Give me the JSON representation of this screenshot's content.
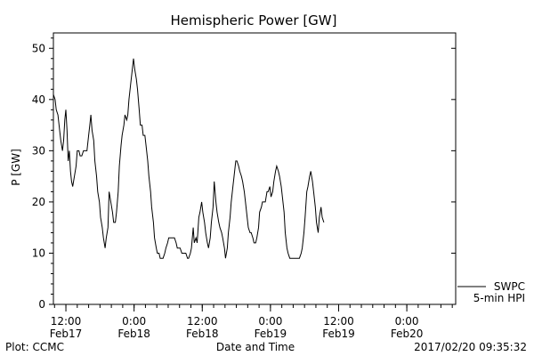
{
  "chart_data": {
    "type": "line",
    "title": "Hemispheric Power [GW]",
    "xlabel": "Date and Time",
    "ylabel": "P [GW]",
    "ylim": [
      0,
      53
    ],
    "yticks": [
      0,
      10,
      20,
      30,
      40,
      50
    ],
    "x_unit": "hours since 2017-02-17 00:00 UT",
    "xlim": [
      9.8,
      80.6
    ],
    "xticks": [
      {
        "x": 12,
        "line1": "12:00",
        "line2": "Feb17"
      },
      {
        "x": 24,
        "line1": "0:00",
        "line2": "Feb18"
      },
      {
        "x": 36,
        "line1": "12:00",
        "line2": "Feb18"
      },
      {
        "x": 48,
        "line1": "0:00",
        "line2": "Feb19"
      },
      {
        "x": 60,
        "line1": "12:00",
        "line2": "Feb19"
      },
      {
        "x": 72,
        "line1": "0:00",
        "line2": "Feb20"
      }
    ],
    "grid": false,
    "legend_placement": "bottom-right",
    "series": [
      {
        "name": "SWPC",
        "color": "#000000",
        "points": [
          [
            9.8,
            41
          ],
          [
            10.1,
            40
          ],
          [
            10.3,
            38
          ],
          [
            10.6,
            37
          ],
          [
            10.9,
            34
          ],
          [
            11.1,
            32
          ],
          [
            11.4,
            30
          ],
          [
            11.6,
            32
          ],
          [
            11.8,
            36
          ],
          [
            12.0,
            38
          ],
          [
            12.2,
            34
          ],
          [
            12.4,
            28
          ],
          [
            12.6,
            30
          ],
          [
            12.8,
            26
          ],
          [
            13.0,
            24
          ],
          [
            13.2,
            23
          ],
          [
            13.5,
            25
          ],
          [
            13.8,
            27
          ],
          [
            14.0,
            30
          ],
          [
            14.3,
            30
          ],
          [
            14.5,
            29
          ],
          [
            14.8,
            29
          ],
          [
            15.1,
            30
          ],
          [
            15.4,
            30
          ],
          [
            15.7,
            30
          ],
          [
            16.0,
            33
          ],
          [
            16.2,
            35
          ],
          [
            16.4,
            37
          ],
          [
            16.6,
            34
          ],
          [
            16.9,
            32
          ],
          [
            17.1,
            28
          ],
          [
            17.4,
            25
          ],
          [
            17.6,
            22
          ],
          [
            17.9,
            20
          ],
          [
            18.1,
            17
          ],
          [
            18.4,
            15
          ],
          [
            18.6,
            13
          ],
          [
            18.9,
            11
          ],
          [
            19.1,
            13
          ],
          [
            19.4,
            15
          ],
          [
            19.6,
            22
          ],
          [
            19.9,
            20
          ],
          [
            20.2,
            18
          ],
          [
            20.4,
            16
          ],
          [
            20.7,
            16
          ],
          [
            20.9,
            18
          ],
          [
            21.2,
            22
          ],
          [
            21.4,
            27
          ],
          [
            21.7,
            31
          ],
          [
            21.9,
            33
          ],
          [
            22.2,
            35
          ],
          [
            22.4,
            37
          ],
          [
            22.7,
            36
          ],
          [
            22.9,
            37
          ],
          [
            23.1,
            40
          ],
          [
            23.4,
            43
          ],
          [
            23.6,
            45
          ],
          [
            23.9,
            48
          ],
          [
            24.1,
            46
          ],
          [
            24.4,
            44
          ],
          [
            24.6,
            42
          ],
          [
            24.9,
            38
          ],
          [
            25.1,
            35
          ],
          [
            25.4,
            35
          ],
          [
            25.6,
            33
          ],
          [
            25.9,
            33
          ],
          [
            26.1,
            31
          ],
          [
            26.4,
            28
          ],
          [
            26.6,
            25
          ],
          [
            26.9,
            22
          ],
          [
            27.1,
            19
          ],
          [
            27.4,
            16
          ],
          [
            27.6,
            13
          ],
          [
            27.9,
            11
          ],
          [
            28.1,
            10
          ],
          [
            28.4,
            10
          ],
          [
            28.6,
            9
          ],
          [
            28.9,
            9
          ],
          [
            29.1,
            9
          ],
          [
            29.4,
            10
          ],
          [
            29.6,
            11
          ],
          [
            29.9,
            12
          ],
          [
            30.1,
            13
          ],
          [
            30.4,
            13
          ],
          [
            30.6,
            13
          ],
          [
            30.9,
            13
          ],
          [
            31.1,
            13
          ],
          [
            31.4,
            12
          ],
          [
            31.6,
            11
          ],
          [
            31.9,
            11
          ],
          [
            32.1,
            11
          ],
          [
            32.4,
            10
          ],
          [
            32.6,
            10
          ],
          [
            32.9,
            10
          ],
          [
            33.1,
            10
          ],
          [
            33.4,
            9
          ],
          [
            33.6,
            9
          ],
          [
            33.9,
            10
          ],
          [
            34.1,
            11
          ],
          [
            34.4,
            15
          ],
          [
            34.6,
            12
          ],
          [
            34.9,
            13
          ],
          [
            35.1,
            12
          ],
          [
            35.4,
            17
          ],
          [
            35.6,
            18
          ],
          [
            35.9,
            20
          ],
          [
            36.1,
            18
          ],
          [
            36.4,
            16
          ],
          [
            36.6,
            14
          ],
          [
            36.9,
            12
          ],
          [
            37.1,
            11
          ],
          [
            37.4,
            13
          ],
          [
            37.6,
            16
          ],
          [
            37.9,
            19
          ],
          [
            38.1,
            24
          ],
          [
            38.4,
            20
          ],
          [
            38.6,
            18
          ],
          [
            38.9,
            16
          ],
          [
            39.1,
            15
          ],
          [
            39.4,
            14
          ],
          [
            39.6,
            13
          ],
          [
            39.9,
            11
          ],
          [
            40.1,
            9
          ],
          [
            40.4,
            11
          ],
          [
            40.6,
            14
          ],
          [
            40.9,
            17
          ],
          [
            41.1,
            20
          ],
          [
            41.4,
            23
          ],
          [
            41.6,
            25
          ],
          [
            41.9,
            28
          ],
          [
            42.1,
            28
          ],
          [
            42.4,
            27
          ],
          [
            42.6,
            26
          ],
          [
            42.9,
            25
          ],
          [
            43.1,
            24
          ],
          [
            43.4,
            22
          ],
          [
            43.6,
            20
          ],
          [
            43.9,
            17
          ],
          [
            44.1,
            15
          ],
          [
            44.4,
            14
          ],
          [
            44.6,
            14
          ],
          [
            44.9,
            13
          ],
          [
            45.1,
            12
          ],
          [
            45.4,
            12
          ],
          [
            45.6,
            13
          ],
          [
            45.9,
            15
          ],
          [
            46.1,
            18
          ],
          [
            46.4,
            19
          ],
          [
            46.6,
            20
          ],
          [
            46.9,
            20
          ],
          [
            47.1,
            20
          ],
          [
            47.4,
            22
          ],
          [
            47.6,
            22
          ],
          [
            47.9,
            23
          ],
          [
            48.1,
            21
          ],
          [
            48.4,
            22
          ],
          [
            48.6,
            24
          ],
          [
            48.9,
            26
          ],
          [
            49.1,
            27
          ],
          [
            49.4,
            26
          ],
          [
            49.6,
            25
          ],
          [
            49.9,
            23
          ],
          [
            50.1,
            21
          ],
          [
            50.4,
            18
          ],
          [
            50.6,
            14
          ],
          [
            50.9,
            11
          ],
          [
            51.1,
            10
          ],
          [
            51.4,
            9
          ],
          [
            51.6,
            9
          ],
          [
            51.9,
            9
          ],
          [
            52.1,
            9
          ],
          [
            52.4,
            9
          ],
          [
            52.6,
            9
          ],
          [
            52.9,
            9
          ],
          [
            53.1,
            9
          ],
          [
            53.4,
            10
          ],
          [
            53.6,
            11
          ],
          [
            53.9,
            14
          ],
          [
            54.1,
            17
          ],
          [
            54.4,
            22
          ],
          [
            54.6,
            23
          ],
          [
            54.9,
            25
          ],
          [
            55.1,
            26
          ],
          [
            55.4,
            24
          ],
          [
            55.6,
            22
          ],
          [
            55.9,
            19
          ],
          [
            56.1,
            16
          ],
          [
            56.4,
            14
          ],
          [
            56.6,
            17
          ],
          [
            56.9,
            19
          ],
          [
            57.1,
            17
          ],
          [
            57.4,
            16
          ]
        ]
      }
    ],
    "legend": [
      {
        "name": "SWPC"
      },
      {
        "name": "5-min HPI"
      }
    ]
  },
  "footer": {
    "left": "Plot: CCMC",
    "right": "2017/02/20 09:35:32"
  }
}
